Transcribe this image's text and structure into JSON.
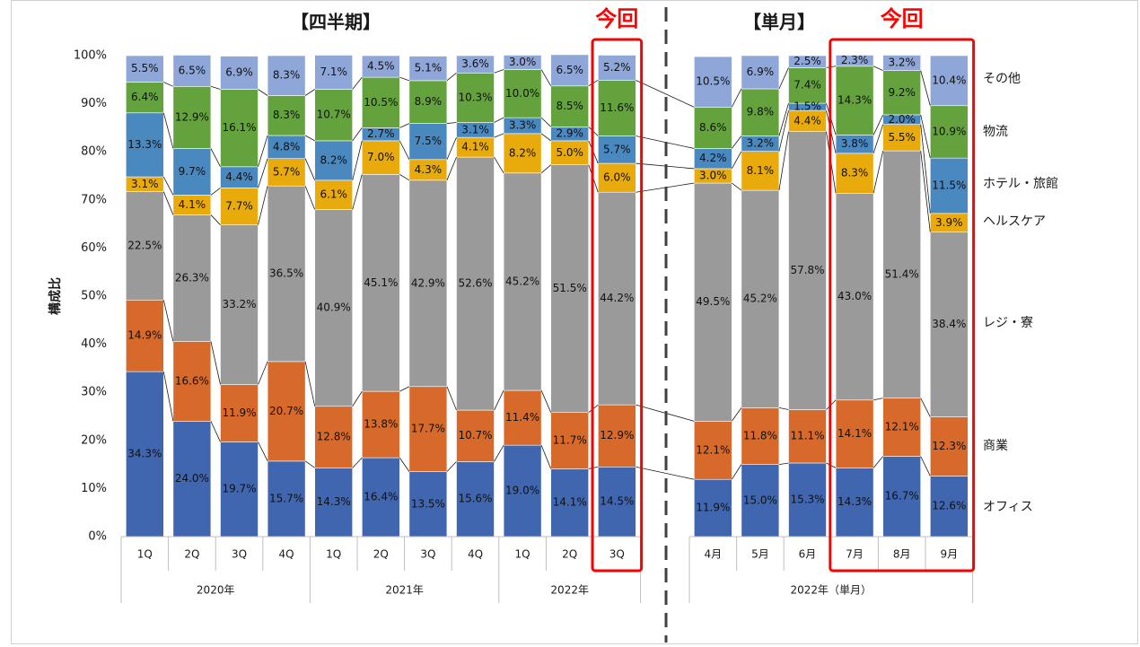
{
  "chart_data": {
    "type": "bar",
    "stacked": true,
    "percent_stacked": true,
    "ylabel": "構成比",
    "ylim": [
      0,
      100
    ],
    "yticks": [
      "0%",
      "10%",
      "20%",
      "30%",
      "40%",
      "50%",
      "60%",
      "70%",
      "80%",
      "90%",
      "100%"
    ],
    "section_titles": {
      "quarterly": "【四半期】",
      "monthly": "【単月】"
    },
    "highlight_label": "今回",
    "highlight_groups": [
      [
        10,
        10
      ],
      [
        14,
        16
      ]
    ],
    "categories": [
      "1Q",
      "2Q",
      "3Q",
      "4Q",
      "1Q",
      "2Q",
      "3Q",
      "4Q",
      "1Q",
      "2Q",
      "3Q",
      "4月",
      "5月",
      "6月",
      "7月",
      "8月",
      "9月"
    ],
    "year_groups": [
      {
        "label": "2020年",
        "start": 0,
        "end": 3
      },
      {
        "label": "2021年",
        "start": 4,
        "end": 7
      },
      {
        "label": "2022年",
        "start": 8,
        "end": 10
      },
      {
        "label": "2022年（単月）",
        "start": 11,
        "end": 16
      }
    ],
    "series": [
      {
        "name": "オフィス",
        "color": "#4066b0",
        "values": [
          34.3,
          24.0,
          19.7,
          15.7,
          14.3,
          16.4,
          13.5,
          15.6,
          19.0,
          14.1,
          14.5,
          11.9,
          15.0,
          15.3,
          14.3,
          16.7,
          12.6
        ]
      },
      {
        "name": "商業",
        "color": "#d7692b",
        "values": [
          14.9,
          16.6,
          11.9,
          20.7,
          12.8,
          13.8,
          17.7,
          10.7,
          11.4,
          11.7,
          12.9,
          12.1,
          11.8,
          11.1,
          14.1,
          12.1,
          12.3
        ]
      },
      {
        "name": "レジ・寮",
        "color": "#9a9a9a",
        "values": [
          22.5,
          26.3,
          33.2,
          36.5,
          40.9,
          45.1,
          42.9,
          52.6,
          45.2,
          51.5,
          44.2,
          49.5,
          45.2,
          57.8,
          43.0,
          51.4,
          38.4
        ]
      },
      {
        "name": "ヘルスケア",
        "color": "#e9aa0c",
        "values": [
          3.1,
          4.1,
          7.7,
          5.7,
          6.1,
          7.0,
          4.3,
          4.1,
          8.2,
          5.0,
          6.0,
          3.0,
          8.1,
          4.4,
          8.3,
          5.5,
          3.9
        ]
      },
      {
        "name": "ホテル・旅館",
        "color": "#4a88c0",
        "values": [
          13.3,
          9.7,
          4.4,
          4.8,
          8.2,
          2.7,
          7.5,
          3.1,
          3.3,
          2.9,
          5.7,
          4.2,
          3.2,
          1.5,
          3.8,
          2.0,
          11.5
        ]
      },
      {
        "name": "物流",
        "color": "#64a23e",
        "values": [
          6.4,
          12.9,
          16.1,
          8.3,
          10.7,
          10.5,
          8.9,
          10.3,
          10.0,
          8.5,
          11.6,
          8.6,
          9.8,
          7.4,
          14.3,
          9.2,
          10.9
        ]
      },
      {
        "name": "その他",
        "color": "#8fa6d8",
        "values": [
          5.5,
          6.5,
          6.9,
          8.3,
          7.1,
          4.5,
          5.1,
          3.6,
          3.0,
          6.5,
          5.2,
          10.5,
          6.9,
          2.5,
          2.3,
          3.2,
          10.4
        ]
      }
    ]
  }
}
